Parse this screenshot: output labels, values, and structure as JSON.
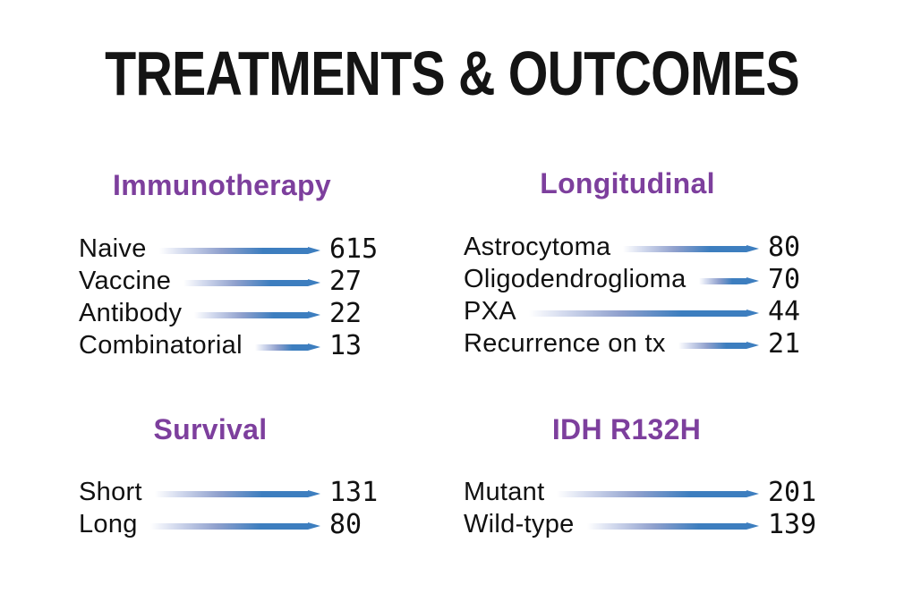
{
  "title": "TREATMENTS & OUTCOMES",
  "colors": {
    "heading_purple": "#7d3f9d",
    "leader_blue": "#3d7ebf",
    "text_black": "#141414",
    "background": "#ffffff"
  },
  "sections": [
    {
      "heading": "Immunotherapy",
      "items": [
        {
          "label": "Naive",
          "value": "615"
        },
        {
          "label": "Vaccine",
          "value": "27"
        },
        {
          "label": "Antibody",
          "value": "22"
        },
        {
          "label": "Combinatorial",
          "value": "13"
        }
      ]
    },
    {
      "heading": "Longitudinal",
      "items": [
        {
          "label": "Astrocytoma",
          "value": "80"
        },
        {
          "label": "Oligodendroglioma",
          "value": "70"
        },
        {
          "label": "PXA",
          "value": "44"
        },
        {
          "label": "Recurrence on tx",
          "value": "21"
        }
      ]
    },
    {
      "heading": "Survival",
      "items": [
        {
          "label": "Short",
          "value": "131"
        },
        {
          "label": "Long",
          "value": "80"
        }
      ]
    },
    {
      "heading": "IDH R132H",
      "items": [
        {
          "label": "Mutant",
          "value": "201"
        },
        {
          "label": "Wild-type",
          "value": "139"
        }
      ]
    }
  ],
  "chart_data": [
    {
      "type": "bar",
      "title": "Immunotherapy",
      "categories": [
        "Naive",
        "Vaccine",
        "Antibody",
        "Combinatorial"
      ],
      "values": [
        615,
        27,
        22,
        13
      ],
      "orientation": "horizontal",
      "note": "leader lines are connectors, not value-proportional"
    },
    {
      "type": "bar",
      "title": "Longitudinal",
      "categories": [
        "Astrocytoma",
        "Oligodendroglioma",
        "PXA",
        "Recurrence on tx"
      ],
      "values": [
        80,
        70,
        44,
        21
      ],
      "orientation": "horizontal",
      "note": "leader lines are connectors, not value-proportional"
    },
    {
      "type": "bar",
      "title": "Survival",
      "categories": [
        "Short",
        "Long"
      ],
      "values": [
        131,
        80
      ],
      "orientation": "horizontal",
      "note": "leader lines are connectors, not value-proportional"
    },
    {
      "type": "bar",
      "title": "IDH R132H",
      "categories": [
        "Mutant",
        "Wild-type"
      ],
      "values": [
        201,
        139
      ],
      "orientation": "horizontal",
      "note": "leader lines are connectors, not value-proportional"
    }
  ]
}
